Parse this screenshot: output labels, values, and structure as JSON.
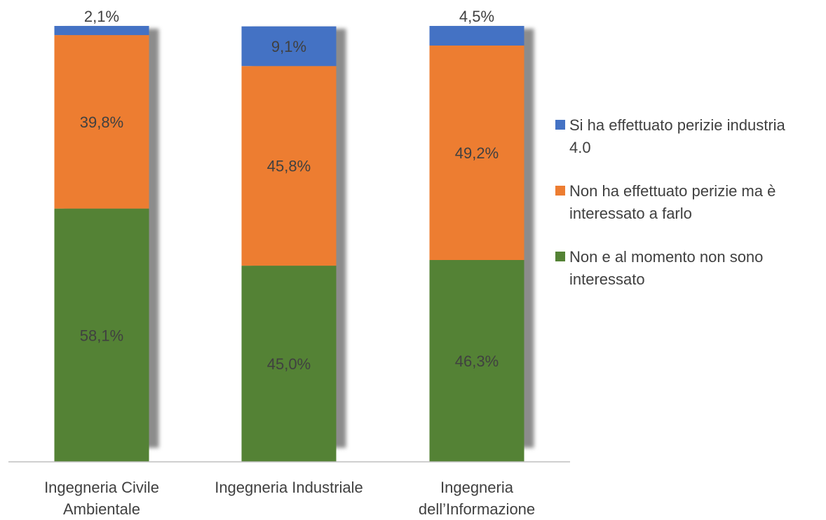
{
  "chart_data": {
    "type": "bar",
    "stacked": true,
    "categories": [
      "Ingegneria Civile Ambientale",
      "Ingegneria Industriale",
      "Ingegneria dell’Informazione"
    ],
    "category_lines": [
      [
        "Ingegneria Civile",
        "Ambientale"
      ],
      [
        "Ingegneria Industriale"
      ],
      [
        "Ingegneria",
        "dell’Informazione"
      ]
    ],
    "series": [
      {
        "name": "Non e al momento non sono interessato",
        "values": [
          58.1,
          45.0,
          46.3
        ],
        "labels": [
          "58,1%",
          "45,0%",
          "46,3%"
        ],
        "color": "#548235"
      },
      {
        "name": "Non ha effettuato perizie ma è interessato a farlo",
        "values": [
          39.8,
          45.8,
          49.2
        ],
        "labels": [
          "39,8%",
          "45,8%",
          "49,2%"
        ],
        "color": "#ED7D31"
      },
      {
        "name": "Si ha effettuato perizie industria 4.0",
        "values": [
          2.1,
          9.1,
          4.5
        ],
        "labels": [
          "2,1%",
          "9,1%",
          "4,5%"
        ],
        "color": "#4472C4"
      }
    ],
    "legend_order": [
      2,
      1,
      0
    ],
    "legend_lines": [
      [
        "Si ha effettuato perizie industria",
        "4.0"
      ],
      [
        "Non ha effettuato perizie ma è",
        "interessato a farlo"
      ],
      [
        "Non e al momento non sono",
        "interessato"
      ]
    ],
    "legend_position": "right",
    "ylim": [
      0,
      100
    ],
    "grid": false,
    "title": "",
    "xlabel": "",
    "ylabel": ""
  }
}
